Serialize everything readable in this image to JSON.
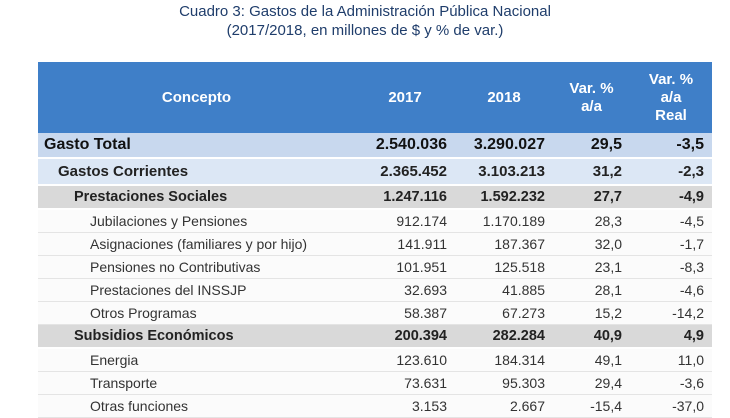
{
  "title": {
    "line1": "Cuadro 3: Gastos de la Administración Pública Nacional",
    "line2": "(2017/2018, en millones de $ y % de var.)"
  },
  "table": {
    "header": [
      "Concepto",
      "2017",
      "2018",
      "Var. %\na/a",
      "Var. %\na/a\nReal"
    ],
    "rows": [
      [
        "Gasto Total",
        "2.540.036",
        "3.290.027",
        "29,5",
        "-3,5"
      ],
      [
        "Gastos Corrientes",
        "2.365.452",
        "3.103.213",
        "31,2",
        "-2,3"
      ],
      [
        "Prestaciones Sociales",
        "1.247.116",
        "1.592.232",
        "27,7",
        "-4,9"
      ],
      [
        "Jubilaciones y Pensiones",
        "912.174",
        "1.170.189",
        "28,3",
        "-4,5"
      ],
      [
        "Asignaciones (familiares y por hijo)",
        "141.911",
        "187.367",
        "32,0",
        "-1,7"
      ],
      [
        "Pensiones no Contributivas",
        "101.951",
        "125.518",
        "23,1",
        "-8,3"
      ],
      [
        "Prestaciones del INSSJP",
        "32.693",
        "41.885",
        "28,1",
        "-4,6"
      ],
      [
        "Otros Programas",
        "58.387",
        "67.273",
        "15,2",
        "-14,2"
      ],
      [
        "Subsidios Económicos",
        "200.394",
        "282.284",
        "40,9",
        "4,9"
      ],
      [
        "Energia",
        "123.610",
        "184.314",
        "49,1",
        "11,0"
      ],
      [
        "Transporte",
        "73.631",
        "95.303",
        "29,4",
        "-3,6"
      ],
      [
        "Otras funciones",
        "3.153",
        "2.667",
        "-15,4",
        "-37,0"
      ]
    ]
  }
}
